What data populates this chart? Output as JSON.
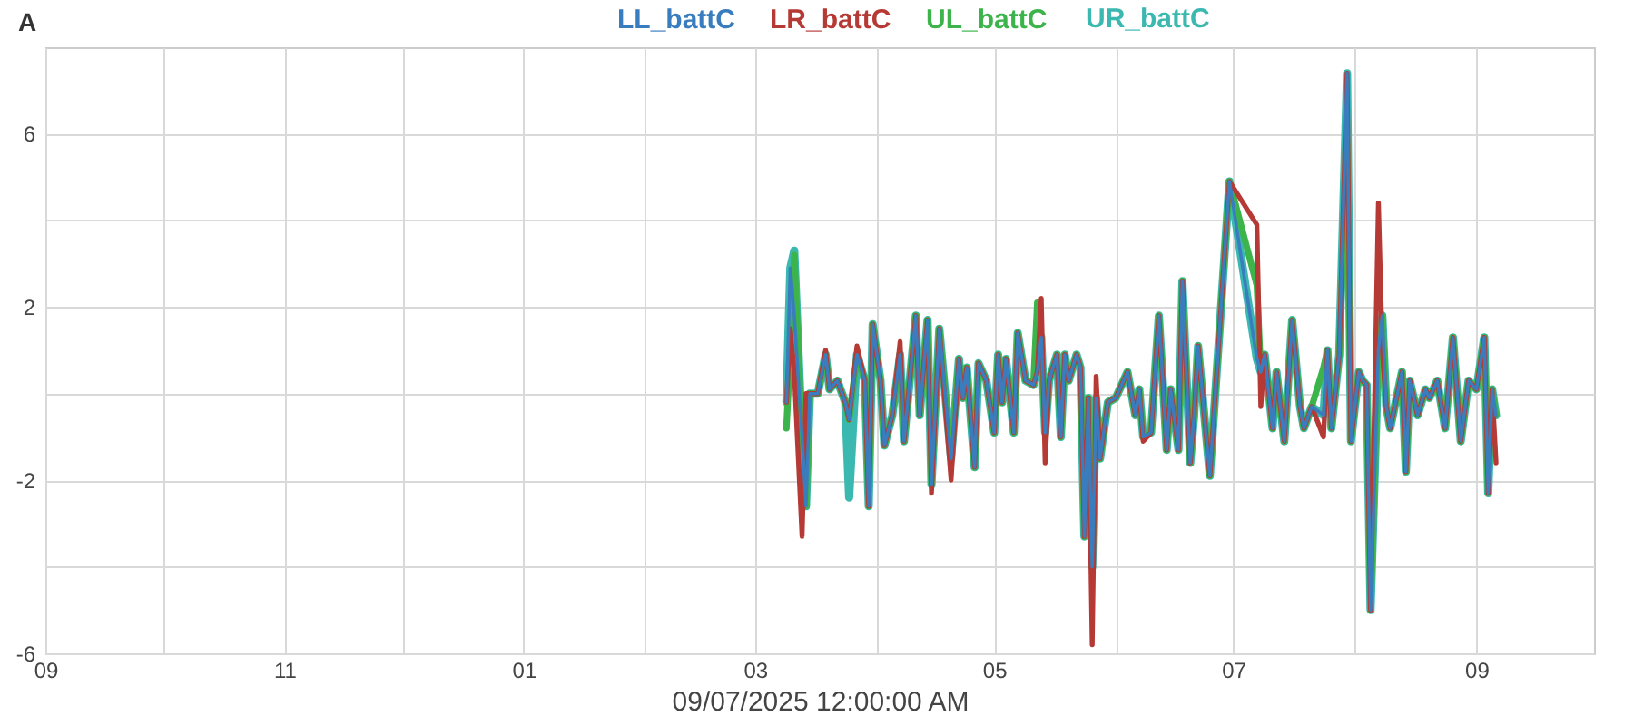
{
  "chart_data": {
    "type": "line",
    "xlabel": "09/07/2025 12:00:00 AM",
    "annotations": [
      "A"
    ],
    "x": [
      "2025-03-09",
      "2025-03-10",
      "2025-03-11",
      "2025-03-13",
      "2025-03-14",
      "2025-03-15",
      "2025-03-17",
      "2025-03-19",
      "2025-03-20",
      "2025-03-22",
      "2025-03-24",
      "2025-03-25",
      "2025-03-27",
      "2025-03-29",
      "2025-03-30",
      "2025-03-31",
      "2025-04-02",
      "2025-04-03",
      "2025-04-05",
      "2025-04-07",
      "2025-04-08",
      "2025-04-11",
      "2025-04-12",
      "2025-04-14",
      "2025-04-15",
      "2025-04-17",
      "2025-04-20",
      "2025-04-22",
      "2025-04-23",
      "2025-04-24",
      "2025-04-26",
      "2025-04-27",
      "2025-04-29",
      "2025-05-01",
      "2025-05-02",
      "2025-05-03",
      "2025-05-04",
      "2025-05-06",
      "2025-05-07",
      "2025-05-09",
      "2025-05-11",
      "2025-05-12",
      "2025-05-13",
      "2025-05-14",
      "2025-05-15",
      "2025-05-17",
      "2025-05-18",
      "2025-05-19",
      "2025-05-20",
      "2025-05-22",
      "2025-05-23",
      "2025-05-24",
      "2025-05-25",
      "2025-05-26",
      "2025-05-27",
      "2025-05-28",
      "2025-05-30",
      "2025-06-01",
      "2025-06-04",
      "2025-06-06",
      "2025-06-07",
      "2025-06-08",
      "2025-06-10",
      "2025-06-12",
      "2025-06-13",
      "2025-06-14",
      "2025-06-15",
      "2025-06-17",
      "2025-06-18",
      "2025-06-20",
      "2025-06-21",
      "2025-06-22",
      "2025-06-23",
      "2025-06-25",
      "2025-06-30",
      "2025-07-07",
      "2025-07-08",
      "2025-07-09",
      "2025-07-11",
      "2025-07-12",
      "2025-07-14",
      "2025-07-16",
      "2025-07-18",
      "2025-07-19",
      "2025-07-21",
      "2025-07-24",
      "2025-07-25",
      "2025-07-26",
      "2025-07-28",
      "2025-07-30",
      "2025-07-31",
      "2025-08-02",
      "2025-08-03",
      "2025-08-04",
      "2025-08-05",
      "2025-08-07",
      "2025-08-08",
      "2025-08-09",
      "2025-08-10",
      "2025-08-13",
      "2025-08-14",
      "2025-08-15",
      "2025-08-17",
      "2025-08-19",
      "2025-08-20",
      "2025-08-22",
      "2025-08-24",
      "2025-08-26",
      "2025-08-28",
      "2025-08-30",
      "2025-09-01",
      "2025-09-03",
      "2025-09-04",
      "2025-09-05",
      "2025-09-06"
    ],
    "series": [
      {
        "name": "LL_battC",
        "color": "#3a7dbf",
        "values": [
          -0.2,
          2.9,
          1.8,
          -1.0,
          -2.6,
          0,
          0,
          0.9,
          0.1,
          0.3,
          -0.2,
          -0.6,
          0.9,
          0.3,
          -2.6,
          1.6,
          0.3,
          -1.2,
          -0.5,
          0.9,
          -1.1,
          1.8,
          -0.5,
          1.7,
          -2.1,
          1.5,
          -1.5,
          0.8,
          -0.1,
          0.6,
          -1.7,
          0.7,
          0.3,
          -0.9,
          0.9,
          -0.2,
          0.8,
          -0.9,
          1.4,
          0.3,
          0.2,
          0.5,
          1.3,
          -0.9,
          0.3,
          0.9,
          -1.0,
          0.9,
          0.3,
          0.9,
          0.6,
          -3.3,
          -0.1,
          -4.0,
          -0.1,
          -1.5,
          -0.2,
          -0.1,
          0.5,
          -0.5,
          0.1,
          -1.0,
          -0.9,
          1.8,
          0.3,
          -1.3,
          0.1,
          -1.3,
          2.6,
          -1.6,
          -0.5,
          1.1,
          0.1,
          -1.9,
          4.9,
          0.8,
          0.5,
          0.9,
          -0.8,
          0.5,
          -1.1,
          1.7,
          -0.3,
          -0.8,
          -0.3,
          -0.5,
          1.0,
          -0.8,
          0.9,
          7.4,
          -1.1,
          0.5,
          0.3,
          0.2,
          -5.0,
          1.0,
          1.8,
          -0.3,
          -0.8,
          0.5,
          -1.8,
          0.3,
          -0.5,
          0.1,
          -0.1,
          0.3,
          -0.8,
          1.3,
          -1.1,
          0.3,
          0.1,
          1.3,
          -2.3,
          0.1,
          -0.5
        ]
      },
      {
        "name": "LR_battC",
        "color": "#b53a35",
        "values": [
          -0.2,
          1.5,
          0.5,
          -3.3,
          0,
          0,
          0,
          1.0,
          0.1,
          0.3,
          -0.2,
          -0.6,
          1.1,
          0.3,
          -2.6,
          1.6,
          0.3,
          -1.2,
          -0.5,
          1.2,
          -1.1,
          1.8,
          -0.5,
          1.7,
          -2.3,
          1.5,
          -2.0,
          0.8,
          -0.1,
          0.6,
          -1.7,
          0.7,
          0.3,
          -0.9,
          0.9,
          -0.2,
          0.8,
          -0.9,
          1.4,
          0.3,
          0.2,
          0.5,
          2.2,
          -1.6,
          0.3,
          0.9,
          -1.0,
          0.9,
          0.3,
          0.9,
          0.6,
          -3.3,
          -0.1,
          -5.8,
          0.4,
          -1.5,
          -0.2,
          -0.1,
          0.5,
          -0.5,
          0.1,
          -1.1,
          -0.9,
          1.8,
          0.3,
          -1.3,
          0.1,
          -1.3,
          2.6,
          -1.6,
          -0.5,
          1.1,
          0.1,
          -1.9,
          4.9,
          3.9,
          -0.3,
          0.9,
          -0.8,
          0.5,
          -1.1,
          1.7,
          -0.3,
          -0.8,
          -0.3,
          -1.0,
          1.0,
          -0.8,
          0.9,
          7.4,
          -1.1,
          0.5,
          0.3,
          0.2,
          -5.0,
          4.4,
          1.0,
          -0.3,
          -0.8,
          0.5,
          -1.8,
          0.3,
          -0.5,
          0.1,
          -0.1,
          0.3,
          -0.8,
          1.3,
          -1.1,
          0.3,
          0.1,
          1.3,
          -2.3,
          0.1,
          -1.6
        ]
      },
      {
        "name": "UL_battC",
        "color": "#3cb44b",
        "values": [
          -0.8,
          1.0,
          3.2,
          -1.0,
          -2.6,
          0,
          0,
          0.9,
          0.1,
          0.3,
          -0.2,
          -0.6,
          0.9,
          0.3,
          -2.6,
          1.6,
          0.3,
          -1.2,
          -0.5,
          0.9,
          -1.1,
          1.8,
          -0.5,
          1.7,
          -2.1,
          1.5,
          -1.5,
          0.8,
          -0.1,
          0.6,
          -1.7,
          0.7,
          0.3,
          -0.9,
          0.9,
          -0.2,
          0.8,
          -0.9,
          1.4,
          0.3,
          0.2,
          2.1,
          1.3,
          -0.9,
          0.3,
          0.9,
          -1.0,
          0.9,
          0.3,
          0.9,
          0.6,
          -3.3,
          -0.1,
          -4.0,
          -0.1,
          -1.5,
          -0.2,
          -0.1,
          0.5,
          -0.5,
          0.1,
          -1.0,
          -0.9,
          1.8,
          0.3,
          -1.3,
          0.1,
          -1.3,
          2.6,
          -1.6,
          -0.5,
          1.1,
          0.1,
          -1.9,
          4.9,
          2.5,
          0.5,
          0.9,
          -0.8,
          0.5,
          -1.1,
          1.7,
          -0.3,
          -0.8,
          -0.3,
          0.6,
          1.0,
          -0.8,
          0.9,
          5.8,
          -1.1,
          0.5,
          0.3,
          0.2,
          -5.0,
          1.0,
          1.8,
          -0.3,
          -0.8,
          0.5,
          -1.8,
          0.3,
          -0.5,
          0.1,
          -0.1,
          0.3,
          -0.8,
          1.3,
          -1.1,
          0.3,
          0.1,
          1.3,
          -2.3,
          0.1,
          -0.5
        ]
      },
      {
        "name": "UR_battC",
        "color": "#3bb8b0",
        "values": [
          -0.2,
          2.9,
          3.3,
          -1.0,
          -2.6,
          0,
          0,
          0.9,
          0.1,
          0.3,
          -0.2,
          -2.4,
          0.9,
          0.3,
          -2.6,
          1.6,
          0.3,
          -1.2,
          -0.5,
          0.9,
          -1.1,
          1.8,
          -0.5,
          1.7,
          -2.1,
          1.5,
          -1.5,
          0.8,
          -0.1,
          0.6,
          -1.7,
          0.7,
          0.3,
          -0.9,
          0.9,
          -0.2,
          0.8,
          -0.9,
          1.4,
          0.3,
          0.2,
          0.5,
          1.3,
          -0.9,
          0.3,
          0.9,
          -1.0,
          0.9,
          0.3,
          0.9,
          0.6,
          -3.3,
          -0.1,
          -4.0,
          -0.1,
          -1.5,
          -0.2,
          -0.1,
          0.5,
          -0.5,
          0.1,
          -1.0,
          -0.9,
          1.8,
          0.3,
          -1.3,
          0.1,
          -1.3,
          2.6,
          -1.6,
          -0.5,
          1.1,
          0.1,
          -1.9,
          4.9,
          0.8,
          0.5,
          0.9,
          -0.8,
          0.5,
          -1.1,
          1.7,
          -0.3,
          -0.8,
          -0.3,
          -0.5,
          1.0,
          -0.8,
          0.9,
          7.4,
          -1.1,
          0.5,
          0.3,
          0.2,
          -5.0,
          1.0,
          1.8,
          -0.3,
          -0.8,
          0.5,
          -1.8,
          0.3,
          -0.5,
          0.1,
          -0.1,
          0.3,
          -0.8,
          1.3,
          -1.1,
          0.3,
          0.1,
          1.3,
          -2.3,
          0.1,
          -0.5
        ]
      }
    ],
    "xlim": [
      "2024-09-01",
      "2025-10-01"
    ],
    "xticks": [
      {
        "value": "2024-09-01",
        "label": "09"
      },
      {
        "value": "2024-10-01",
        "label": null
      },
      {
        "value": "2024-11-01",
        "label": "11"
      },
      {
        "value": "2024-12-01",
        "label": null
      },
      {
        "value": "2025-01-01",
        "label": "01"
      },
      {
        "value": "2025-02-01",
        "label": null
      },
      {
        "value": "2025-03-01",
        "label": "03"
      },
      {
        "value": "2025-04-01",
        "label": null
      },
      {
        "value": "2025-05-01",
        "label": "05"
      },
      {
        "value": "2025-06-01",
        "label": null
      },
      {
        "value": "2025-07-01",
        "label": "07"
      },
      {
        "value": "2025-08-01",
        "label": null
      },
      {
        "value": "2025-09-01",
        "label": "09"
      }
    ],
    "ylim": [
      -6,
      8
    ],
    "yticks": [
      -6,
      {
        "value": -4,
        "label": null
      },
      -2,
      {
        "value": 0,
        "label": null
      },
      2,
      {
        "value": 4,
        "label": null
      },
      6
    ],
    "grid": true,
    "legend": "top",
    "marker": "none",
    "line_style": "solid"
  }
}
